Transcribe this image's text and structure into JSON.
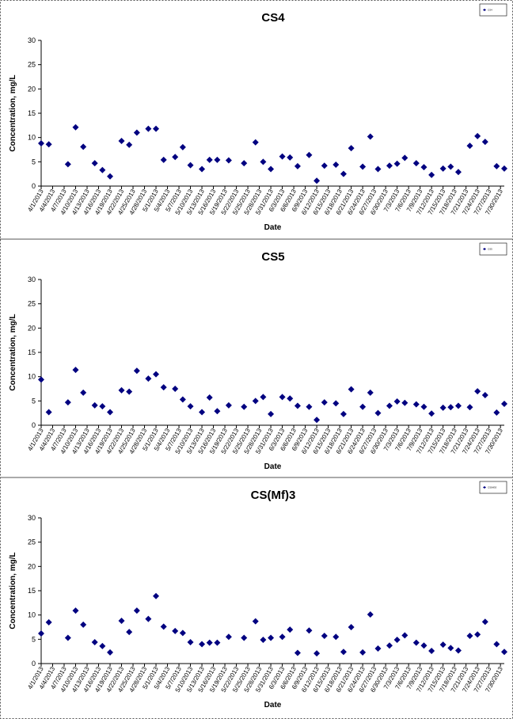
{
  "chart_data": [
    {
      "type": "scatter",
      "title": "CS4",
      "x_label": "Date",
      "y_label": "Concentration, mg/L",
      "x": [
        "4/1/2013",
        "4/3/2013",
        "4/5/2013",
        "4/8/2013",
        "4/10/2013",
        "4/12/2013",
        "4/15/2013",
        "4/17/2013",
        "4/19/2013",
        "4/22/2013",
        "4/24/2013",
        "4/26/2013",
        "4/29/2013",
        "5/1/2013",
        "5/3/2013",
        "5/6/2013",
        "5/8/2013",
        "5/10/2013",
        "5/13/2013",
        "5/15/2013",
        "5/17/2013",
        "5/20/2013",
        "5/22/2013",
        "5/24/2013",
        "5/27/2013",
        "5/29/2013",
        "5/31/2013",
        "6/3/2013",
        "6/5/2013",
        "6/7/2013",
        "6/10/2013",
        "6/12/2013",
        "6/14/2013",
        "6/17/2013",
        "6/19/2013",
        "6/21/2013",
        "6/24/2013",
        "6/26/2013",
        "6/28/2013",
        "7/1/2013",
        "7/3/2013",
        "7/5/2013",
        "7/8/2013",
        "7/10/2013",
        "7/12/2013",
        "7/15/2013",
        "7/17/2013",
        "7/19/2013",
        "7/22/2013",
        "7/24/2013",
        "7/26/2013",
        "7/29/2013",
        "7/31/2013"
      ],
      "series": [
        {
          "name": "CS4",
          "color": "#000080",
          "values": [
            8.8,
            8.6,
            null,
            4.5,
            12.1,
            8.1,
            4.7,
            3.3,
            2.0,
            9.3,
            8.5,
            11.0,
            11.8,
            11.8,
            5.4,
            6.0,
            8.0,
            4.3,
            3.5,
            5.4,
            5.4,
            5.3,
            null,
            4.7,
            9.0,
            5.0,
            3.5,
            6.1,
            5.9,
            4.1,
            6.4,
            1.1,
            4.2,
            4.4,
            2.5,
            7.8,
            4.0,
            10.2,
            3.5,
            4.2,
            4.6,
            5.8,
            4.7,
            3.9,
            2.3,
            3.6,
            4.0,
            2.9,
            8.3,
            10.3,
            9.1,
            4.1,
            3.6
          ]
        }
      ],
      "xlim": [
        "4/1/2013",
        "7/31/2013"
      ],
      "xticks": [
        "4/1/2013",
        "4/4/2013",
        "4/7/2013",
        "4/10/2013",
        "4/13/2013",
        "4/16/2013",
        "4/19/2013",
        "4/22/2013",
        "4/25/2013",
        "4/28/2013",
        "5/1/2013",
        "5/4/2013",
        "5/7/2013",
        "5/10/2013",
        "5/13/2013",
        "5/16/2013",
        "5/19/2013",
        "5/22/2013",
        "5/25/2013",
        "5/28/2013",
        "5/31/2013",
        "6/3/2013",
        "6/6/2013",
        "6/9/2013",
        "6/12/2013",
        "6/15/2013",
        "6/18/2013",
        "6/21/2013",
        "6/24/2013",
        "6/27/2013",
        "6/30/2013",
        "7/3/2013",
        "7/6/2013",
        "7/9/2013",
        "7/12/2013",
        "7/15/2013",
        "7/18/2013",
        "7/21/2013",
        "7/24/2013",
        "7/27/2013",
        "7/30/2013"
      ],
      "ylim": [
        0,
        30
      ],
      "yticks": [
        0,
        5,
        10,
        15,
        20,
        25,
        30
      ],
      "legend": "top-right"
    },
    {
      "type": "scatter",
      "title": "CS5",
      "x_label": "Date",
      "y_label": "Concentration, mg/L",
      "x": [
        "4/1/2013",
        "4/3/2013",
        "4/5/2013",
        "4/8/2013",
        "4/10/2013",
        "4/12/2013",
        "4/15/2013",
        "4/17/2013",
        "4/19/2013",
        "4/22/2013",
        "4/24/2013",
        "4/26/2013",
        "4/29/2013",
        "5/1/2013",
        "5/3/2013",
        "5/6/2013",
        "5/8/2013",
        "5/10/2013",
        "5/13/2013",
        "5/15/2013",
        "5/17/2013",
        "5/20/2013",
        "5/22/2013",
        "5/24/2013",
        "5/27/2013",
        "5/29/2013",
        "5/31/2013",
        "6/3/2013",
        "6/5/2013",
        "6/7/2013",
        "6/10/2013",
        "6/12/2013",
        "6/14/2013",
        "6/17/2013",
        "6/19/2013",
        "6/21/2013",
        "6/24/2013",
        "6/26/2013",
        "6/28/2013",
        "7/1/2013",
        "7/3/2013",
        "7/5/2013",
        "7/8/2013",
        "7/10/2013",
        "7/12/2013",
        "7/15/2013",
        "7/17/2013",
        "7/19/2013",
        "7/22/2013",
        "7/24/2013",
        "7/26/2013",
        "7/29/2013",
        "7/31/2013"
      ],
      "series": [
        {
          "name": "CS5",
          "color": "#000080",
          "values": [
            9.4,
            2.7,
            null,
            4.7,
            11.4,
            6.7,
            4.1,
            3.9,
            2.7,
            7.2,
            6.9,
            11.2,
            9.6,
            10.5,
            7.8,
            7.5,
            5.3,
            3.9,
            2.7,
            5.7,
            2.9,
            4.1,
            null,
            3.8,
            5.0,
            5.8,
            2.3,
            5.8,
            5.5,
            4.0,
            3.8,
            1.1,
            4.7,
            4.5,
            2.3,
            7.4,
            3.8,
            6.7,
            2.5,
            4.0,
            4.9,
            4.6,
            4.3,
            3.8,
            2.4,
            3.6,
            3.7,
            4.0,
            3.7,
            7.0,
            6.2,
            2.6,
            4.4
          ]
        }
      ],
      "xlim": [
        "4/1/2013",
        "7/31/2013"
      ],
      "xticks": [
        "4/1/2013",
        "4/4/2013",
        "4/7/2013",
        "4/10/2013",
        "4/13/2013",
        "4/16/2013",
        "4/19/2013",
        "4/22/2013",
        "4/25/2013",
        "4/28/2013",
        "5/1/2013",
        "5/4/2013",
        "5/7/2013",
        "5/10/2013",
        "5/13/2013",
        "5/16/2013",
        "5/19/2013",
        "5/22/2013",
        "5/25/2013",
        "5/28/2013",
        "5/31/2013",
        "6/3/2013",
        "6/6/2013",
        "6/9/2013",
        "6/12/2013",
        "6/15/2013",
        "6/18/2013",
        "6/21/2013",
        "6/24/2013",
        "6/27/2013",
        "6/30/2013",
        "7/3/2013",
        "7/6/2013",
        "7/9/2013",
        "7/12/2013",
        "7/15/2013",
        "7/18/2013",
        "7/21/2013",
        "7/24/2013",
        "7/27/2013",
        "7/30/2013"
      ],
      "ylim": [
        0,
        30
      ],
      "yticks": [
        0,
        5,
        10,
        15,
        20,
        25,
        30
      ],
      "legend": "top-right"
    },
    {
      "type": "scatter",
      "title": "CS(Mf)3",
      "x_label": "Date",
      "y_label": "Concentration, mg/L",
      "x": [
        "4/1/2013",
        "4/3/2013",
        "4/5/2013",
        "4/8/2013",
        "4/10/2013",
        "4/12/2013",
        "4/15/2013",
        "4/17/2013",
        "4/19/2013",
        "4/22/2013",
        "4/24/2013",
        "4/26/2013",
        "4/29/2013",
        "5/1/2013",
        "5/3/2013",
        "5/6/2013",
        "5/8/2013",
        "5/10/2013",
        "5/13/2013",
        "5/15/2013",
        "5/17/2013",
        "5/20/2013",
        "5/22/2013",
        "5/24/2013",
        "5/27/2013",
        "5/29/2013",
        "5/31/2013",
        "6/3/2013",
        "6/5/2013",
        "6/7/2013",
        "6/10/2013",
        "6/12/2013",
        "6/14/2013",
        "6/17/2013",
        "6/19/2013",
        "6/21/2013",
        "6/24/2013",
        "6/26/2013",
        "6/28/2013",
        "7/1/2013",
        "7/3/2013",
        "7/5/2013",
        "7/8/2013",
        "7/10/2013",
        "7/12/2013",
        "7/15/2013",
        "7/17/2013",
        "7/19/2013",
        "7/22/2013",
        "7/24/2013",
        "7/26/2013",
        "7/29/2013",
        "7/31/2013"
      ],
      "series": [
        {
          "name": "CS(Mf)3",
          "color": "#000080",
          "values": [
            6.2,
            8.5,
            null,
            5.3,
            10.9,
            8.0,
            4.4,
            3.6,
            2.3,
            8.8,
            6.5,
            10.9,
            9.2,
            13.9,
            7.6,
            6.7,
            6.3,
            4.4,
            4.0,
            4.3,
            4.3,
            5.5,
            null,
            5.3,
            8.7,
            4.9,
            5.3,
            5.5,
            7.0,
            2.2,
            6.8,
            2.1,
            5.7,
            5.5,
            2.4,
            7.5,
            2.3,
            10.1,
            3.1,
            3.7,
            4.9,
            5.8,
            4.3,
            3.7,
            2.6,
            3.9,
            3.2,
            2.7,
            5.7,
            6.0,
            8.6,
            4.0,
            2.4
          ]
        }
      ],
      "xlim": [
        "4/1/2013",
        "7/31/2013"
      ],
      "xticks": [
        "4/1/2013",
        "4/4/2013",
        "4/7/2013",
        "4/10/2013",
        "4/13/2013",
        "4/16/2013",
        "4/19/2013",
        "4/22/2013",
        "4/25/2013",
        "4/28/2013",
        "5/1/2013",
        "5/4/2013",
        "5/7/2013",
        "5/10/2013",
        "5/13/2013",
        "5/16/2013",
        "5/19/2013",
        "5/22/2013",
        "5/25/2013",
        "5/28/2013",
        "5/31/2013",
        "6/3/2013",
        "6/6/2013",
        "6/9/2013",
        "6/12/2013",
        "6/15/2013",
        "6/18/2013",
        "6/21/2013",
        "6/24/2013",
        "6/27/2013",
        "6/30/2013",
        "7/3/2013",
        "7/6/2013",
        "7/9/2013",
        "7/12/2013",
        "7/15/2013",
        "7/18/2013",
        "7/21/2013",
        "7/24/2013",
        "7/27/2013",
        "7/30/2013"
      ],
      "ylim": [
        0,
        30
      ],
      "yticks": [
        0,
        5,
        10,
        15,
        20,
        25,
        30
      ],
      "legend": "top-right"
    }
  ]
}
